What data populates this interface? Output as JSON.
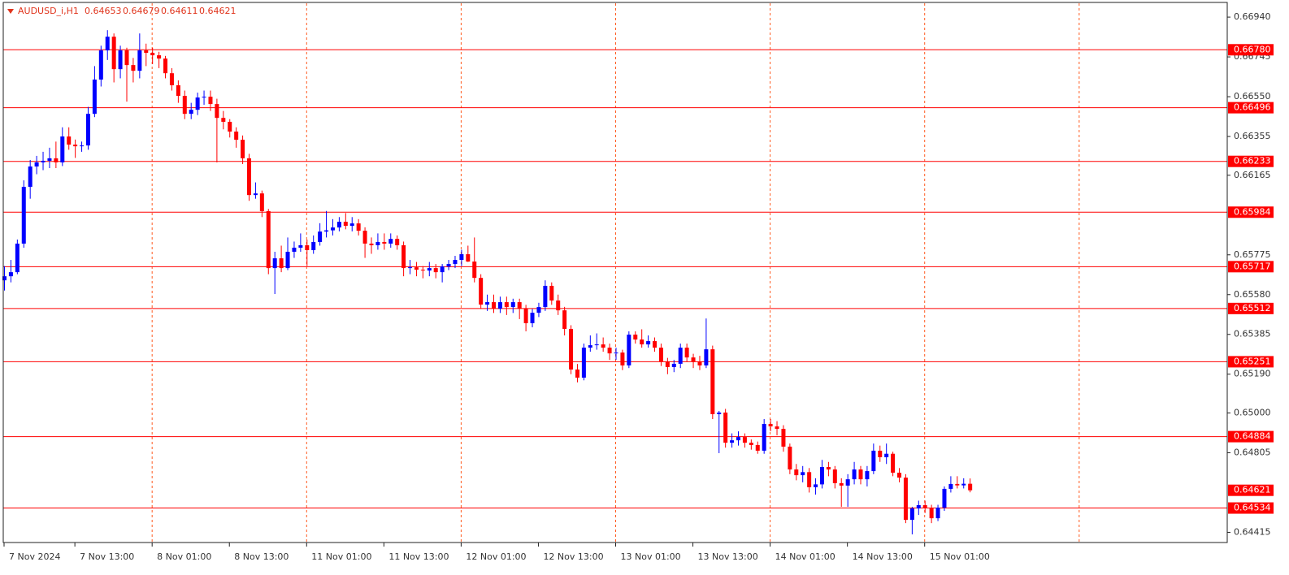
{
  "chart_data": {
    "type": "candlestick",
    "title": "AUDUSD_i,H1",
    "up_color": "#0000ff",
    "down_color": "#ff0000",
    "level_color": "#ff0000",
    "grid_color": "#ff5a1f",
    "xlim": [
      0,
      190
    ],
    "ylim": [
      0.64369,
      0.67008
    ],
    "xticks": [
      {
        "value": 0,
        "label": "7 Nov 2024"
      },
      {
        "value": 11,
        "label": "7 Nov 13:00"
      },
      {
        "value": 23,
        "label": "8 Nov 01:00"
      },
      {
        "value": 35,
        "label": "8 Nov 13:00"
      },
      {
        "value": 47,
        "label": "11 Nov 01:00"
      },
      {
        "value": 59,
        "label": "11 Nov 13:00"
      },
      {
        "value": 71,
        "label": "12 Nov 01:00"
      },
      {
        "value": 83,
        "label": "12 Nov 13:00"
      },
      {
        "value": 95,
        "label": "13 Nov 01:00"
      },
      {
        "value": 107,
        "label": "13 Nov 13:00"
      },
      {
        "value": 119,
        "label": "14 Nov 01:00"
      },
      {
        "value": 131,
        "label": "14 Nov 13:00"
      },
      {
        "value": 143,
        "label": "15 Nov 01:00"
      }
    ],
    "grid_x": [
      23,
      47,
      71,
      95,
      119,
      143,
      167
    ],
    "yticks": [
      {
        "value": 0.6694,
        "label": "0.66940"
      },
      {
        "value": 0.66745,
        "label": "0.66745"
      },
      {
        "value": 0.6655,
        "label": "0.66550"
      },
      {
        "value": 0.66355,
        "label": "0.66355"
      },
      {
        "value": 0.66165,
        "label": "0.66165"
      },
      {
        "value": 0.65775,
        "label": "0.65775"
      },
      {
        "value": 0.6558,
        "label": "0.65580"
      },
      {
        "value": 0.65385,
        "label": "0.65385"
      },
      {
        "value": 0.6519,
        "label": "0.65190"
      },
      {
        "value": 0.65,
        "label": "0.65000"
      },
      {
        "value": 0.64805,
        "label": "0.64805"
      },
      {
        "value": 0.64415,
        "label": "0.64415"
      }
    ],
    "levels": [
      {
        "value": 0.6678,
        "label": "0.66780"
      },
      {
        "value": 0.66496,
        "label": "0.66496"
      },
      {
        "value": 0.66233,
        "label": "0.66233"
      },
      {
        "value": 0.65984,
        "label": "0.65984"
      },
      {
        "value": 0.65717,
        "label": "0.65717"
      },
      {
        "value": 0.65512,
        "label": "0.65512"
      },
      {
        "value": 0.65251,
        "label": "0.65251"
      },
      {
        "value": 0.64884,
        "label": "0.64884"
      },
      {
        "value": 0.64534,
        "label": "0.64534"
      }
    ],
    "candles": [
      [
        0.6565,
        0.6572,
        0.656,
        0.6567
      ],
      [
        0.6567,
        0.6575,
        0.6564,
        0.6569
      ],
      [
        0.6569,
        0.6585,
        0.6568,
        0.6583
      ],
      [
        0.6583,
        0.6614,
        0.6581,
        0.66108
      ],
      [
        0.66108,
        0.6624,
        0.6605,
        0.66208
      ],
      [
        0.66208,
        0.6626,
        0.6617,
        0.66228
      ],
      [
        0.66228,
        0.6628,
        0.6619,
        0.66236
      ],
      [
        0.66236,
        0.663,
        0.662,
        0.66248
      ],
      [
        0.66248,
        0.6633,
        0.662,
        0.66228
      ],
      [
        0.66228,
        0.664,
        0.6621,
        0.66355
      ],
      [
        0.66355,
        0.664,
        0.6629,
        0.66315
      ],
      [
        0.66315,
        0.6634,
        0.6625,
        0.66307
      ],
      [
        0.66307,
        0.6633,
        0.6628,
        0.66311
      ],
      [
        0.66311,
        0.665,
        0.6629,
        0.66466
      ],
      [
        0.66466,
        0.667,
        0.6645,
        0.66634
      ],
      [
        0.66634,
        0.668,
        0.666,
        0.66777
      ],
      [
        0.66777,
        0.66876,
        0.6673,
        0.66844
      ],
      [
        0.66844,
        0.6686,
        0.6662,
        0.66685
      ],
      [
        0.66685,
        0.668,
        0.6664,
        0.66777
      ],
      [
        0.66777,
        0.6679,
        0.66526,
        0.66705
      ],
      [
        0.66705,
        0.6674,
        0.6662,
        0.66677
      ],
      [
        0.66677,
        0.6686,
        0.6664,
        0.66777
      ],
      [
        0.66777,
        0.6681,
        0.667,
        0.66765
      ],
      [
        0.66765,
        0.6679,
        0.6671,
        0.66753
      ],
      [
        0.66753,
        0.6677,
        0.6669,
        0.66737
      ],
      [
        0.66737,
        0.6675,
        0.6664,
        0.66665
      ],
      [
        0.66665,
        0.6669,
        0.6658,
        0.66606
      ],
      [
        0.66606,
        0.6663,
        0.6652,
        0.66554
      ],
      [
        0.66554,
        0.6658,
        0.6644,
        0.66466
      ],
      [
        0.66466,
        0.6652,
        0.6644,
        0.66486
      ],
      [
        0.66486,
        0.6657,
        0.6646,
        0.66546
      ],
      [
        0.66546,
        0.6658,
        0.6651,
        0.6655
      ],
      [
        0.6655,
        0.6658,
        0.6648,
        0.66514
      ],
      [
        0.66514,
        0.6654,
        0.66228,
        0.66446
      ],
      [
        0.66446,
        0.6648,
        0.6639,
        0.66427
      ],
      [
        0.66427,
        0.6644,
        0.6635,
        0.66379
      ],
      [
        0.66379,
        0.664,
        0.663,
        0.66339
      ],
      [
        0.66339,
        0.6636,
        0.6622,
        0.66248
      ],
      [
        0.66248,
        0.6627,
        0.6604,
        0.66068
      ],
      [
        0.66068,
        0.6613,
        0.6605,
        0.66076
      ],
      [
        0.66076,
        0.6609,
        0.6596,
        0.65989
      ],
      [
        0.65989,
        0.66,
        0.6568,
        0.6571
      ],
      [
        0.6571,
        0.6579,
        0.65583,
        0.65758
      ],
      [
        0.65758,
        0.6582,
        0.6569,
        0.6571
      ],
      [
        0.6571,
        0.6586,
        0.657,
        0.6579
      ],
      [
        0.6579,
        0.6584,
        0.6576,
        0.6581
      ],
      [
        0.6581,
        0.6588,
        0.6579,
        0.65822
      ],
      [
        0.65822,
        0.6585,
        0.6572,
        0.65798
      ],
      [
        0.65798,
        0.6587,
        0.6578,
        0.65838
      ],
      [
        0.65838,
        0.6593,
        0.6582,
        0.65889
      ],
      [
        0.65889,
        0.6599,
        0.6586,
        0.65895
      ],
      [
        0.65895,
        0.6595,
        0.6587,
        0.65909
      ],
      [
        0.65909,
        0.6596,
        0.6589,
        0.65937
      ],
      [
        0.65937,
        0.6598,
        0.659,
        0.65917
      ],
      [
        0.65917,
        0.6596,
        0.6589,
        0.65929
      ],
      [
        0.65929,
        0.6595,
        0.6587,
        0.65893
      ],
      [
        0.65893,
        0.6591,
        0.6576,
        0.6583
      ],
      [
        0.6583,
        0.6586,
        0.6578,
        0.65822
      ],
      [
        0.65822,
        0.6588,
        0.658,
        0.65838
      ],
      [
        0.65838,
        0.6588,
        0.658,
        0.6583
      ],
      [
        0.6583,
        0.6588,
        0.6581,
        0.65853
      ],
      [
        0.65853,
        0.6587,
        0.658,
        0.65822
      ],
      [
        0.65822,
        0.6584,
        0.6567,
        0.6571
      ],
      [
        0.6571,
        0.6575,
        0.6568,
        0.65714
      ],
      [
        0.65714,
        0.6574,
        0.6567,
        0.65702
      ],
      [
        0.65702,
        0.6572,
        0.6566,
        0.65698
      ],
      [
        0.65698,
        0.6574,
        0.6567,
        0.6571
      ],
      [
        0.6571,
        0.6573,
        0.6566,
        0.6569
      ],
      [
        0.6569,
        0.6573,
        0.6564,
        0.65718
      ],
      [
        0.65718,
        0.6575,
        0.657,
        0.6573
      ],
      [
        0.6573,
        0.6577,
        0.6571,
        0.6575
      ],
      [
        0.6575,
        0.658,
        0.6572,
        0.65778
      ],
      [
        0.65778,
        0.6582,
        0.6574,
        0.65742
      ],
      [
        0.65742,
        0.6586,
        0.6564,
        0.65662
      ],
      [
        0.65662,
        0.6568,
        0.6551,
        0.65531
      ],
      [
        0.65531,
        0.6558,
        0.655,
        0.65543
      ],
      [
        0.65543,
        0.6558,
        0.6549,
        0.65511
      ],
      [
        0.65511,
        0.6557,
        0.6549,
        0.65543
      ],
      [
        0.65543,
        0.6557,
        0.6548,
        0.65519
      ],
      [
        0.65519,
        0.6556,
        0.6549,
        0.65543
      ],
      [
        0.65543,
        0.6556,
        0.6546,
        0.65511
      ],
      [
        0.65511,
        0.6553,
        0.654,
        0.6544
      ],
      [
        0.6544,
        0.6551,
        0.6542,
        0.65491
      ],
      [
        0.65491,
        0.6554,
        0.6547,
        0.65519
      ],
      [
        0.65519,
        0.6565,
        0.655,
        0.65623
      ],
      [
        0.65623,
        0.6564,
        0.6553,
        0.65551
      ],
      [
        0.65551,
        0.6558,
        0.6548,
        0.65503
      ],
      [
        0.65503,
        0.6552,
        0.6538,
        0.65412
      ],
      [
        0.65412,
        0.6543,
        0.6519,
        0.65213
      ],
      [
        0.65213,
        0.6524,
        0.6515,
        0.65173
      ],
      [
        0.65173,
        0.6534,
        0.6516,
        0.6532
      ],
      [
        0.6532,
        0.6538,
        0.653,
        0.65332
      ],
      [
        0.65332,
        0.6539,
        0.6531,
        0.65336
      ],
      [
        0.65336,
        0.6537,
        0.653,
        0.6532
      ],
      [
        0.6532,
        0.6534,
        0.6526,
        0.65292
      ],
      [
        0.65292,
        0.6532,
        0.6526,
        0.65296
      ],
      [
        0.65296,
        0.6531,
        0.6521,
        0.65233
      ],
      [
        0.65233,
        0.654,
        0.6522,
        0.65384
      ],
      [
        0.65384,
        0.654,
        0.6534,
        0.6536
      ],
      [
        0.6536,
        0.6541,
        0.6532,
        0.65336
      ],
      [
        0.65336,
        0.6538,
        0.6532,
        0.65352
      ],
      [
        0.65352,
        0.6537,
        0.653,
        0.6532
      ],
      [
        0.6532,
        0.6534,
        0.6523,
        0.65252
      ],
      [
        0.65252,
        0.6527,
        0.6519,
        0.65225
      ],
      [
        0.65225,
        0.6526,
        0.652,
        0.65241
      ],
      [
        0.65241,
        0.6534,
        0.6522,
        0.6532
      ],
      [
        0.6532,
        0.6534,
        0.6525,
        0.65272
      ],
      [
        0.65272,
        0.6529,
        0.6522,
        0.65252
      ],
      [
        0.65252,
        0.6528,
        0.6521,
        0.65233
      ],
      [
        0.65233,
        0.65463,
        0.6522,
        0.65312
      ],
      [
        0.65312,
        0.6533,
        0.6497,
        0.64994
      ],
      [
        0.64994,
        0.6501,
        0.64803,
        0.65002
      ],
      [
        0.65002,
        0.6502,
        0.6483,
        0.64854
      ],
      [
        0.64854,
        0.649,
        0.6483,
        0.64866
      ],
      [
        0.64866,
        0.6491,
        0.6484,
        0.64882
      ],
      [
        0.64882,
        0.649,
        0.6483,
        0.64854
      ],
      [
        0.64854,
        0.6487,
        0.6482,
        0.64843
      ],
      [
        0.64843,
        0.6486,
        0.648,
        0.64815
      ],
      [
        0.64815,
        0.6497,
        0.648,
        0.64946
      ],
      [
        0.64946,
        0.6497,
        0.6491,
        0.64934
      ],
      [
        0.64934,
        0.6496,
        0.6489,
        0.64922
      ],
      [
        0.64922,
        0.6494,
        0.6481,
        0.64835
      ],
      [
        0.64835,
        0.6485,
        0.647,
        0.64723
      ],
      [
        0.64723,
        0.6475,
        0.6467,
        0.64695
      ],
      [
        0.64695,
        0.6474,
        0.6466,
        0.6471
      ],
      [
        0.6471,
        0.6473,
        0.6461,
        0.64636
      ],
      [
        0.64636,
        0.6468,
        0.646,
        0.6465
      ],
      [
        0.6465,
        0.6477,
        0.6463,
        0.64735
      ],
      [
        0.64735,
        0.6476,
        0.6469,
        0.64723
      ],
      [
        0.64723,
        0.6474,
        0.6463,
        0.64656
      ],
      [
        0.64656,
        0.6468,
        0.6454,
        0.64644
      ],
      [
        0.64644,
        0.647,
        0.6454,
        0.64675
      ],
      [
        0.64675,
        0.6476,
        0.6465,
        0.64723
      ],
      [
        0.64723,
        0.6474,
        0.6465,
        0.64675
      ],
      [
        0.64675,
        0.6474,
        0.6464,
        0.64715
      ],
      [
        0.64715,
        0.6485,
        0.647,
        0.64815
      ],
      [
        0.64815,
        0.6484,
        0.6476,
        0.64783
      ],
      [
        0.64783,
        0.6485,
        0.6475,
        0.648
      ],
      [
        0.648,
        0.6481,
        0.6469,
        0.64707
      ],
      [
        0.64707,
        0.6473,
        0.6466,
        0.64683
      ],
      [
        0.64683,
        0.647,
        0.6446,
        0.64476
      ],
      [
        0.64476,
        0.6454,
        0.64405,
        0.64532
      ],
      [
        0.64532,
        0.6457,
        0.645,
        0.64548
      ],
      [
        0.64548,
        0.6457,
        0.6451,
        0.64536
      ],
      [
        0.64536,
        0.6455,
        0.6446,
        0.64484
      ],
      [
        0.64484,
        0.6455,
        0.6447,
        0.64536
      ],
      [
        0.64536,
        0.6464,
        0.6452,
        0.64628
      ],
      [
        0.64628,
        0.6469,
        0.6461,
        0.64652
      ],
      [
        0.64652,
        0.6469,
        0.6463,
        0.64645
      ],
      [
        0.64645,
        0.6468,
        0.6463,
        0.64653
      ],
      [
        0.64653,
        0.64679,
        0.64611,
        0.64621
      ]
    ]
  }
}
